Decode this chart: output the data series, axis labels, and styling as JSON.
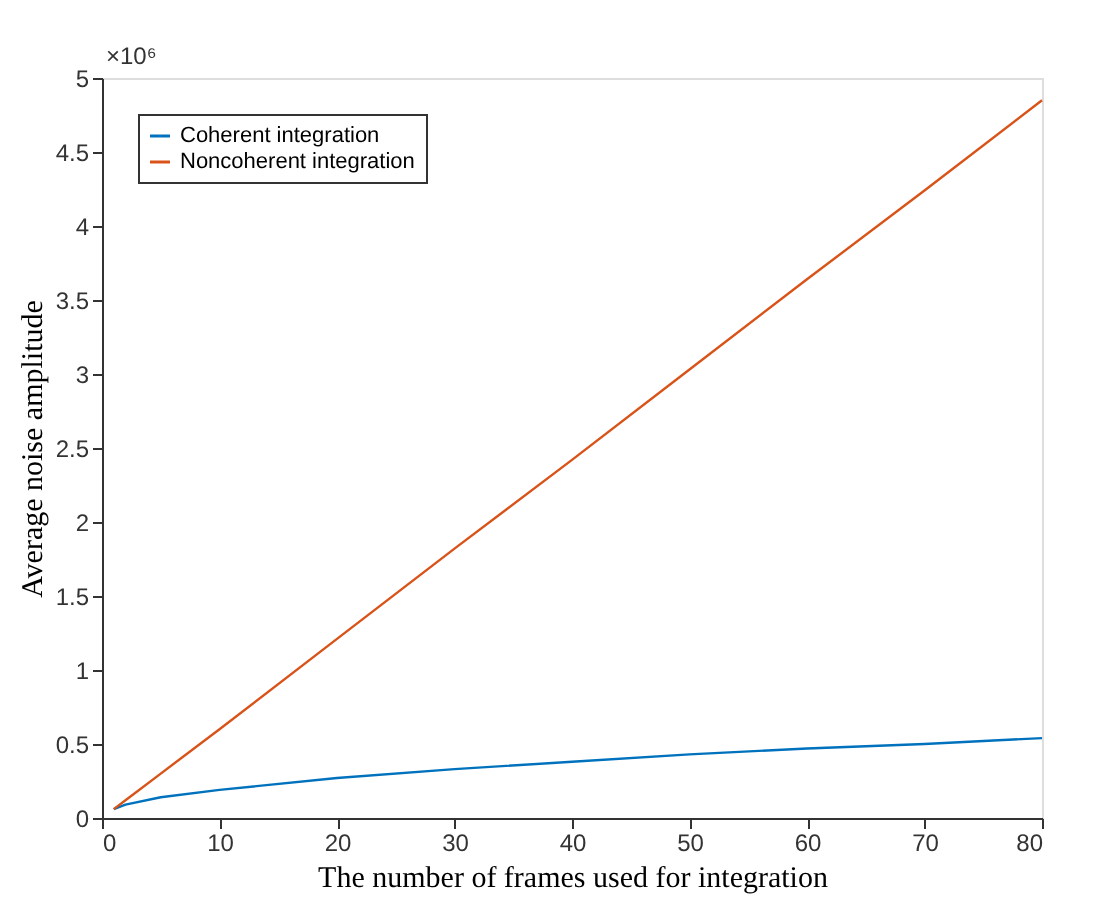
{
  "chart_data": {
    "type": "line",
    "xlabel": "The number of frames used for integration",
    "ylabel": "Average noise amplitude",
    "annotations": [
      "×10⁶"
    ],
    "x": [
      1,
      2,
      5,
      10,
      20,
      30,
      40,
      50,
      60,
      70,
      80
    ],
    "series": [
      {
        "name": "Coherent integration",
        "color": "#0072bd",
        "values": [
          0.06,
          0.09,
          0.14,
          0.19,
          0.27,
          0.33,
          0.38,
          0.43,
          0.47,
          0.5,
          0.54
        ]
      },
      {
        "name": "Noncoherent integration",
        "color": "#d95319",
        "values": [
          0.06,
          0.12,
          0.3,
          0.6,
          1.21,
          1.82,
          2.42,
          3.03,
          3.64,
          4.24,
          4.85
        ]
      }
    ],
    "xlim": [
      0,
      80
    ],
    "xticks": [
      0,
      10,
      20,
      30,
      40,
      50,
      60,
      70,
      80
    ],
    "ylim": [
      0,
      5
    ],
    "yticks": [
      0,
      0.5,
      1,
      1.5,
      2,
      2.5,
      3,
      3.5,
      4,
      4.5,
      5
    ],
    "grid": false,
    "legend": "top left",
    "marker": "none",
    "line_style": "solid"
  }
}
